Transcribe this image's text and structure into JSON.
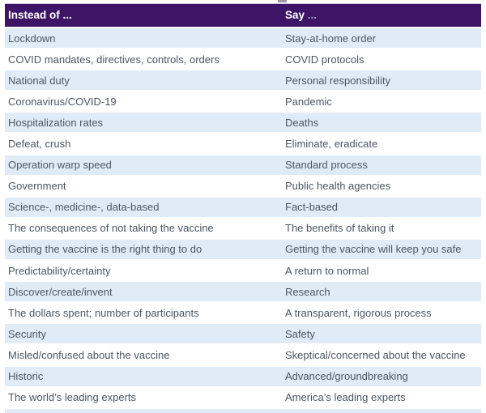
{
  "colors": {
    "header_bg": "#3e1566",
    "header_top_edge": "#c9c0d9",
    "header_text": "#ffffff",
    "say_ellipsis": "#a29ab4",
    "row_alt_bg": "#dfecf7",
    "row_text": "#4b5662"
  },
  "table": {
    "headers": {
      "instead_label": "Instead of ...",
      "say_label": "Say",
      "say_ellipsis": " ..."
    },
    "rows": [
      {
        "instead": "Lockdown",
        "say": "Stay-at-home order"
      },
      {
        "instead": "COVID mandates, directives, controls, orders",
        "say": "COVID protocols"
      },
      {
        "instead": "National duty",
        "say": "Personal responsibility"
      },
      {
        "instead": "Coronavirus/COVID-19",
        "say": "Pandemic"
      },
      {
        "instead": "Hospitalization rates",
        "say": "Deaths"
      },
      {
        "instead": "Defeat, crush",
        "say": "Eliminate, eradicate"
      },
      {
        "instead": "Operation warp speed",
        "say": "Standard process"
      },
      {
        "instead": "Government",
        "say": "Public health agencies"
      },
      {
        "instead": "Science-, medicine-, data-based",
        "say": "Fact-based"
      },
      {
        "instead": "The consequences of not taking the vaccine",
        "say": "The benefits of taking it"
      },
      {
        "instead": "Getting the vaccine is the right thing to do",
        "say": "Getting the vaccine will keep you safe"
      },
      {
        "instead": "Predictability/certainty",
        "say": "A return to normal"
      },
      {
        "instead": "Discover/create/invent",
        "say": "Research"
      },
      {
        "instead": "The dollars spent; number of participants",
        "say": "A transparent, rigorous process"
      },
      {
        "instead": "Security",
        "say": "Safety"
      },
      {
        "instead": "Misled/confused about the vaccine",
        "say": "Skeptical/concerned about the vaccine"
      },
      {
        "instead": "Historic",
        "say": "Advanced/groundbreaking"
      },
      {
        "instead": "The world’s leading experts",
        "say": "America’s leading experts"
      }
    ]
  }
}
